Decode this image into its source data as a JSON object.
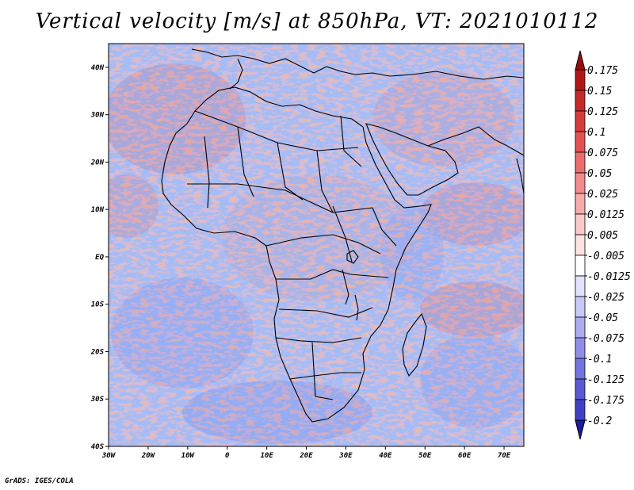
{
  "title": "Vertical velocity [m/s] at 850hPa, VT: 2021010112",
  "credit": "GrADS: IGES/COLA",
  "map": {
    "variable": "Vertical velocity",
    "units": "m/s",
    "level": "850hPa",
    "valid_time": "2021010112",
    "region": "Africa",
    "lon_range": [
      -30,
      75
    ],
    "lat_range": [
      -40,
      45
    ],
    "lat_ticks": [
      {
        "value": 40,
        "label": "40N"
      },
      {
        "value": 30,
        "label": "30N"
      },
      {
        "value": 20,
        "label": "20N"
      },
      {
        "value": 10,
        "label": "10N"
      },
      {
        "value": 0,
        "label": "EQ"
      },
      {
        "value": -10,
        "label": "10S"
      },
      {
        "value": -20,
        "label": "20S"
      },
      {
        "value": -30,
        "label": "30S"
      },
      {
        "value": -40,
        "label": "40S"
      }
    ],
    "lon_ticks": [
      {
        "value": -30,
        "label": "30W"
      },
      {
        "value": -20,
        "label": "20W"
      },
      {
        "value": -10,
        "label": "10W"
      },
      {
        "value": 0,
        "label": "0"
      },
      {
        "value": 10,
        "label": "10E"
      },
      {
        "value": 20,
        "label": "20E"
      },
      {
        "value": 30,
        "label": "30E"
      },
      {
        "value": 40,
        "label": "40E"
      },
      {
        "value": 50,
        "label": "50E"
      },
      {
        "value": 60,
        "label": "60E"
      },
      {
        "value": 70,
        "label": "70E"
      }
    ]
  },
  "colorbar": {
    "levels": [
      {
        "label": "0.175",
        "color": "#b01818"
      },
      {
        "label": "0.15",
        "color": "#c42a2a"
      },
      {
        "label": "0.125",
        "color": "#d63c3c"
      },
      {
        "label": "0.1",
        "color": "#e35252"
      },
      {
        "label": "0.075",
        "color": "#eb6e6e"
      },
      {
        "label": "0.05",
        "color": "#f28c8c"
      },
      {
        "label": "0.025",
        "color": "#f6abab"
      },
      {
        "label": "0.0125",
        "color": "#f9c8c8"
      },
      {
        "label": "0.005",
        "color": "#fce2e2"
      },
      {
        "label": "-0.005",
        "color": "#ffffff"
      },
      {
        "label": "-0.0125",
        "color": "#e2e2fb"
      },
      {
        "label": "-0.025",
        "color": "#c9c9f6"
      },
      {
        "label": "-0.05",
        "color": "#acacf0"
      },
      {
        "label": "-0.075",
        "color": "#8f8fe8"
      },
      {
        "label": "-0.1",
        "color": "#7474df"
      },
      {
        "label": "-0.125",
        "color": "#5959d4"
      },
      {
        "label": "-0.175",
        "color": "#4040c6"
      },
      {
        "label": "-0.2",
        "color": "#2a2ab4"
      }
    ],
    "max_arrow_color": "#9a0e0e",
    "min_arrow_color": "#1c1ca2"
  }
}
